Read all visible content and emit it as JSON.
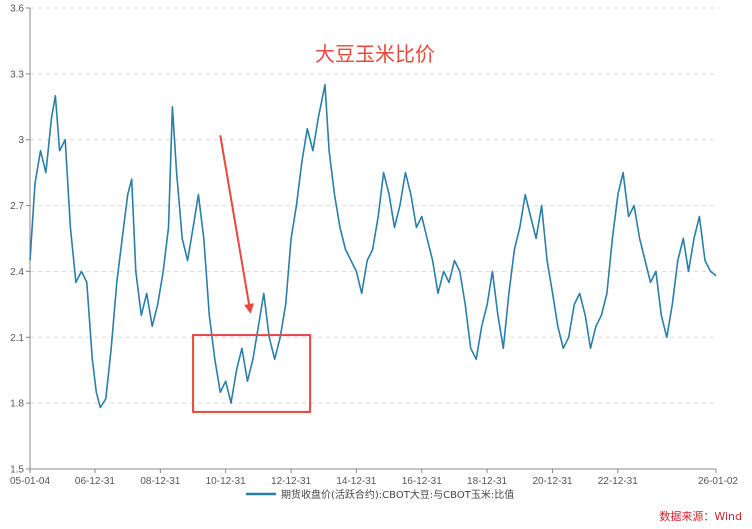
{
  "chart_data": {
    "type": "line",
    "title": "大豆玉米比价",
    "source": "数据来源：Wind",
    "series": [
      {
        "name": "期货收盘价(活跃合约):CBOT大豆:与CBOT玉米:比值",
        "color": "#2a7fa8",
        "points": [
          [
            "2005-01-04",
            2.45
          ],
          [
            "2005-03-01",
            2.8
          ],
          [
            "2005-05-01",
            2.95
          ],
          [
            "2005-07-01",
            2.85
          ],
          [
            "2005-09-01",
            3.1
          ],
          [
            "2005-10-15",
            3.2
          ],
          [
            "2005-12-01",
            2.95
          ],
          [
            "2006-02-01",
            3.0
          ],
          [
            "2006-04-01",
            2.6
          ],
          [
            "2006-06-01",
            2.35
          ],
          [
            "2006-08-01",
            2.4
          ],
          [
            "2006-10-01",
            2.35
          ],
          [
            "2006-12-01",
            2.0
          ],
          [
            "2007-01-15",
            1.85
          ],
          [
            "2007-03-01",
            1.78
          ],
          [
            "2007-05-01",
            1.82
          ],
          [
            "2007-07-01",
            2.05
          ],
          [
            "2007-09-01",
            2.35
          ],
          [
            "2007-11-01",
            2.55
          ],
          [
            "2008-01-01",
            2.75
          ],
          [
            "2008-02-15",
            2.82
          ],
          [
            "2008-04-01",
            2.4
          ],
          [
            "2008-06-01",
            2.2
          ],
          [
            "2008-08-01",
            2.3
          ],
          [
            "2008-10-01",
            2.15
          ],
          [
            "2008-12-01",
            2.25
          ],
          [
            "2009-02-01",
            2.4
          ],
          [
            "2009-04-01",
            2.6
          ],
          [
            "2009-05-15",
            3.15
          ],
          [
            "2009-07-01",
            2.85
          ],
          [
            "2009-09-01",
            2.55
          ],
          [
            "2009-11-01",
            2.45
          ],
          [
            "2010-01-01",
            2.6
          ],
          [
            "2010-03-01",
            2.75
          ],
          [
            "2010-05-01",
            2.55
          ],
          [
            "2010-07-01",
            2.2
          ],
          [
            "2010-09-01",
            2.0
          ],
          [
            "2010-11-01",
            1.85
          ],
          [
            "2011-01-01",
            1.9
          ],
          [
            "2011-03-01",
            1.8
          ],
          [
            "2011-05-01",
            1.95
          ],
          [
            "2011-07-01",
            2.05
          ],
          [
            "2011-09-01",
            1.9
          ],
          [
            "2011-11-01",
            2.0
          ],
          [
            "2012-01-01",
            2.15
          ],
          [
            "2012-03-01",
            2.3
          ],
          [
            "2012-05-01",
            2.1
          ],
          [
            "2012-07-01",
            2.0
          ],
          [
            "2012-09-01",
            2.1
          ],
          [
            "2012-11-01",
            2.25
          ],
          [
            "2013-01-01",
            2.55
          ],
          [
            "2013-03-01",
            2.7
          ],
          [
            "2013-05-01",
            2.9
          ],
          [
            "2013-07-01",
            3.05
          ],
          [
            "2013-09-01",
            2.95
          ],
          [
            "2013-11-01",
            3.1
          ],
          [
            "2014-01-15",
            3.25
          ],
          [
            "2014-03-01",
            2.95
          ],
          [
            "2014-05-01",
            2.75
          ],
          [
            "2014-07-01",
            2.6
          ],
          [
            "2014-09-01",
            2.5
          ],
          [
            "2014-11-01",
            2.45
          ],
          [
            "2015-01-01",
            2.4
          ],
          [
            "2015-03-01",
            2.3
          ],
          [
            "2015-05-01",
            2.45
          ],
          [
            "2015-07-01",
            2.5
          ],
          [
            "2015-09-01",
            2.65
          ],
          [
            "2015-11-01",
            2.85
          ],
          [
            "2016-01-01",
            2.75
          ],
          [
            "2016-03-01",
            2.6
          ],
          [
            "2016-05-01",
            2.7
          ],
          [
            "2016-07-01",
            2.85
          ],
          [
            "2016-09-01",
            2.75
          ],
          [
            "2016-11-01",
            2.6
          ],
          [
            "2017-01-01",
            2.65
          ],
          [
            "2017-03-01",
            2.55
          ],
          [
            "2017-05-01",
            2.45
          ],
          [
            "2017-07-01",
            2.3
          ],
          [
            "2017-09-01",
            2.4
          ],
          [
            "2017-11-01",
            2.35
          ],
          [
            "2018-01-01",
            2.45
          ],
          [
            "2018-03-01",
            2.4
          ],
          [
            "2018-05-01",
            2.25
          ],
          [
            "2018-07-01",
            2.05
          ],
          [
            "2018-09-01",
            2.0
          ],
          [
            "2018-11-01",
            2.15
          ],
          [
            "2019-01-01",
            2.25
          ],
          [
            "2019-03-01",
            2.4
          ],
          [
            "2019-05-01",
            2.2
          ],
          [
            "2019-07-01",
            2.05
          ],
          [
            "2019-09-01",
            2.3
          ],
          [
            "2019-11-01",
            2.5
          ],
          [
            "2020-01-01",
            2.6
          ],
          [
            "2020-03-01",
            2.75
          ],
          [
            "2020-05-01",
            2.65
          ],
          [
            "2020-07-01",
            2.55
          ],
          [
            "2020-09-01",
            2.7
          ],
          [
            "2020-11-01",
            2.45
          ],
          [
            "2021-01-01",
            2.3
          ],
          [
            "2021-03-01",
            2.15
          ],
          [
            "2021-05-01",
            2.05
          ],
          [
            "2021-07-01",
            2.1
          ],
          [
            "2021-09-01",
            2.25
          ],
          [
            "2021-11-01",
            2.3
          ],
          [
            "2022-01-01",
            2.2
          ],
          [
            "2022-03-01",
            2.05
          ],
          [
            "2022-05-01",
            2.15
          ],
          [
            "2022-07-01",
            2.2
          ],
          [
            "2022-09-01",
            2.3
          ],
          [
            "2022-11-01",
            2.55
          ],
          [
            "2023-01-01",
            2.75
          ],
          [
            "2023-03-01",
            2.85
          ],
          [
            "2023-05-01",
            2.65
          ],
          [
            "2023-07-01",
            2.7
          ],
          [
            "2023-09-01",
            2.55
          ],
          [
            "2023-11-01",
            2.45
          ],
          [
            "2024-01-01",
            2.35
          ],
          [
            "2024-03-01",
            2.4
          ],
          [
            "2024-05-01",
            2.2
          ],
          [
            "2024-07-01",
            2.1
          ],
          [
            "2024-09-01",
            2.25
          ],
          [
            "2024-11-01",
            2.45
          ],
          [
            "2025-01-01",
            2.55
          ],
          [
            "2025-03-01",
            2.4
          ],
          [
            "2025-05-01",
            2.55
          ],
          [
            "2025-07-01",
            2.65
          ],
          [
            "2025-09-01",
            2.45
          ],
          [
            "2025-11-01",
            2.4
          ],
          [
            "2026-01-02",
            2.38
          ]
        ]
      }
    ],
    "xlim": [
      "2005-01-04",
      "2026-01-02"
    ],
    "ylim": [
      1.5,
      3.6
    ],
    "yticks": [
      "1.5",
      "1.8",
      "2.1",
      "2.4",
      "2.7",
      "3",
      "3.3",
      "3.6"
    ],
    "xticks": [
      {
        "date": "2005-01-04",
        "label": "05-01-04"
      },
      {
        "date": "2006-12-31",
        "label": "06-12-31"
      },
      {
        "date": "2008-12-31",
        "label": "08-12-31"
      },
      {
        "date": "2010-12-31",
        "label": "10-12-31"
      },
      {
        "date": "2012-12-31",
        "label": "12-12-31"
      },
      {
        "date": "2014-12-31",
        "label": "14-12-31"
      },
      {
        "date": "2016-12-31",
        "label": "16-12-31"
      },
      {
        "date": "2018-12-31",
        "label": "18-12-31"
      },
      {
        "date": "2020-12-31",
        "label": "20-12-31"
      },
      {
        "date": "2022-12-31",
        "label": "22-12-31"
      },
      {
        "date": "2026-01-02",
        "label": "26-01-02"
      }
    ],
    "grid": "horizontal dashed",
    "legend_position": "bottom-center",
    "annotations": {
      "highlight_box": {
        "x_from": "2010-01-01",
        "x_to": "2013-08-01",
        "y_from": 1.76,
        "y_to": 2.11,
        "color": "#e8473f"
      },
      "arrow": {
        "from": {
          "date": "2010-11-01",
          "value": 3.02
        },
        "to": {
          "date": "2011-10-01",
          "value": 2.22
        },
        "color": "#e8473f"
      }
    }
  }
}
